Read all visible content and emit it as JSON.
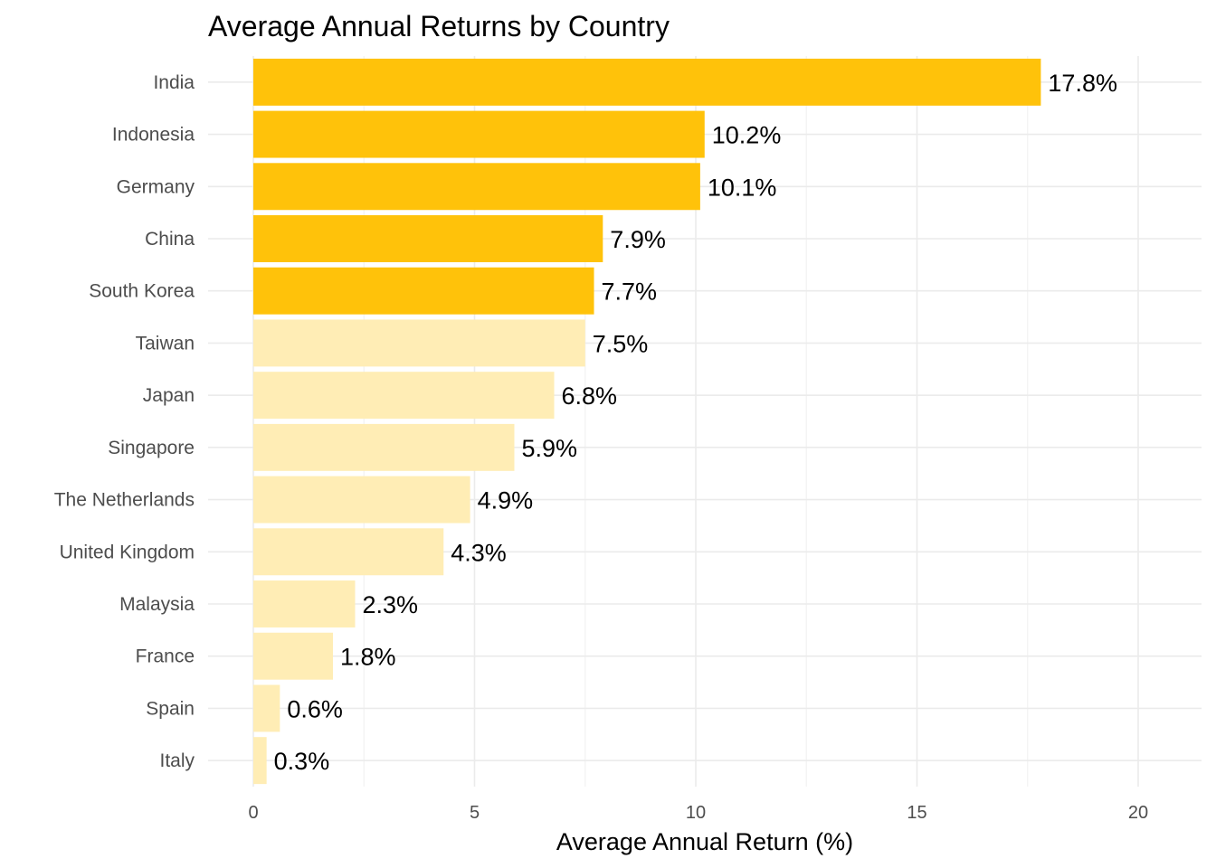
{
  "chart_data": {
    "type": "bar",
    "orientation": "horizontal",
    "title": "Average Annual Returns by Country",
    "xlabel": "Average Annual Return (%)",
    "ylabel": "",
    "xlim": [
      0,
      20
    ],
    "xticks": [
      "0",
      "5",
      "10",
      "15",
      "20"
    ],
    "grid": true,
    "legend": "none",
    "highlight_color": "#FFC20A",
    "base_color": "#FFEDB5",
    "categories": [
      "India",
      "Indonesia",
      "Germany",
      "China",
      "South Korea",
      "Taiwan",
      "Japan",
      "Singapore",
      "The Netherlands",
      "United Kingdom",
      "Malaysia",
      "France",
      "Spain",
      "Italy"
    ],
    "values": [
      17.8,
      10.2,
      10.1,
      7.9,
      7.7,
      7.5,
      6.8,
      5.9,
      4.9,
      4.3,
      2.3,
      1.8,
      0.6,
      0.3
    ],
    "data_labels": [
      "17.8%",
      "10.2%",
      "10.1%",
      "7.9%",
      "7.7%",
      "7.5%",
      "6.8%",
      "5.9%",
      "4.9%",
      "4.3%",
      "2.3%",
      "1.8%",
      "0.6%",
      "0.3%"
    ],
    "highlighted": [
      true,
      true,
      true,
      true,
      true,
      false,
      false,
      false,
      false,
      false,
      false,
      false,
      false,
      false
    ]
  }
}
